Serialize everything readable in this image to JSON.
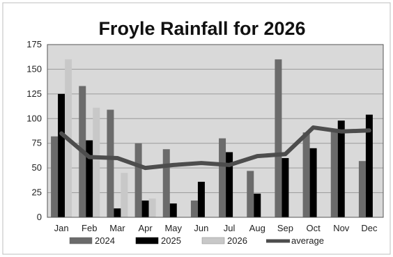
{
  "chart_data": {
    "type": "bar",
    "title": "Froyle Rainfall for 2026",
    "xlabel": "",
    "ylabel": "",
    "categories": [
      "Jan",
      "Feb",
      "Mar",
      "Apr",
      "May",
      "Jun",
      "Jul",
      "Aug",
      "Sep",
      "Oct",
      "Nov",
      "Dec"
    ],
    "ylim": [
      0,
      175
    ],
    "yticks": [
      0,
      25,
      50,
      75,
      100,
      125,
      150,
      175
    ],
    "ytick_labels": [
      "0",
      "25",
      "50",
      "75",
      "100",
      "125",
      "150",
      "175"
    ],
    "grid": true,
    "legend_position": "bottom",
    "series": [
      {
        "name": "2024",
        "type": "bar",
        "color": "#6b6b6b",
        "values": [
          82,
          133,
          109,
          75,
          69,
          17,
          80,
          47,
          160,
          86,
          87,
          57
        ]
      },
      {
        "name": "2025",
        "type": "bar",
        "color": "#000000",
        "values": [
          125,
          78,
          9,
          17,
          14,
          36,
          66,
          24,
          60,
          70,
          98,
          104
        ]
      },
      {
        "name": "2026",
        "type": "bar",
        "color": "#c8c8c8",
        "values": [
          160,
          111,
          45,
          19,
          null,
          null,
          null,
          null,
          null,
          null,
          null,
          null
        ]
      },
      {
        "name": "average",
        "type": "line",
        "color": "#4d4d4d",
        "values": [
          85,
          61,
          60,
          50,
          53,
          55,
          53,
          62,
          64,
          91,
          87,
          88
        ]
      }
    ]
  },
  "colors": {
    "plot_background": "#d9d9d9",
    "gridline": "#9a9a9a",
    "border": "#555555"
  }
}
